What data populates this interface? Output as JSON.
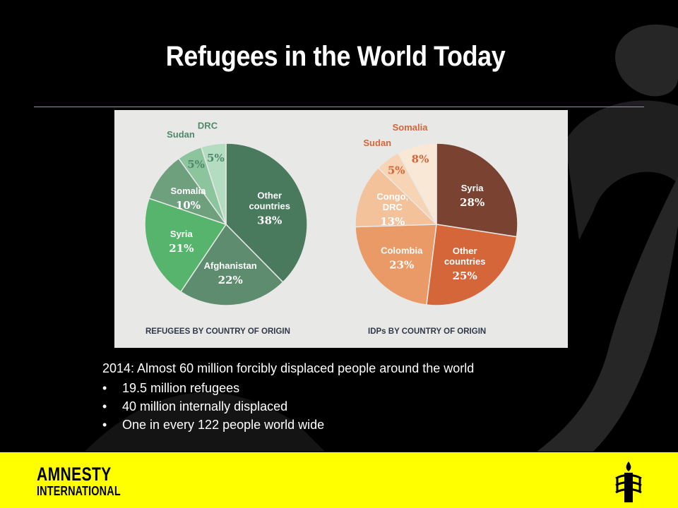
{
  "slide": {
    "title": "Refugees in the World Today",
    "headline": "2014: Almost 60 million forcibly displaced people around the world",
    "bullets": [
      "19.5 million refugees",
      "40 million internally displaced",
      "One in every 122 people world wide"
    ],
    "footer": {
      "logo_line1": "AMNESTY",
      "logo_line2": "INTERNATIONAL",
      "logo_icon": "candle-barbed-wire-icon",
      "color": "#ffff00"
    }
  },
  "chart_data": [
    {
      "type": "pie",
      "caption": "REFUGEES BY COUNTRY OF ORIGIN",
      "slices": [
        {
          "name": "Other countries",
          "value": 38,
          "label": "38%",
          "color": "#4a7a5e"
        },
        {
          "name": "Afghanistan",
          "value": 22,
          "label": "22%",
          "color": "#5e8c6e"
        },
        {
          "name": "Syria",
          "value": 21,
          "label": "21%",
          "color": "#56b46c"
        },
        {
          "name": "Somalia",
          "value": 10,
          "label": "10%",
          "color": "#6fa07e"
        },
        {
          "name": "Sudan",
          "value": 5,
          "label": "5%",
          "color": "#8cc49e"
        },
        {
          "name": "DRC",
          "value": 5,
          "label": "5%",
          "color": "#b4dcc0"
        }
      ]
    },
    {
      "type": "pie",
      "caption": "IDPs BY COUNTRY OF ORIGIN",
      "slices": [
        {
          "name": "Syria",
          "value": 28,
          "label": "28%",
          "color": "#7a4331"
        },
        {
          "name": "Other countries",
          "value": 25,
          "label": "25%",
          "color": "#d4663a"
        },
        {
          "name": "Colombia",
          "value": 23,
          "label": "23%",
          "color": "#ea9a66"
        },
        {
          "name": "Congo, DRC",
          "value": 13,
          "label": "13%",
          "color": "#f3c29a"
        },
        {
          "name": "Sudan",
          "value": 5,
          "label": "5%",
          "color": "#f6d4b4"
        },
        {
          "name": "Somalia",
          "value": 8,
          "label": "8%",
          "color": "#fae8d6"
        }
      ]
    }
  ]
}
